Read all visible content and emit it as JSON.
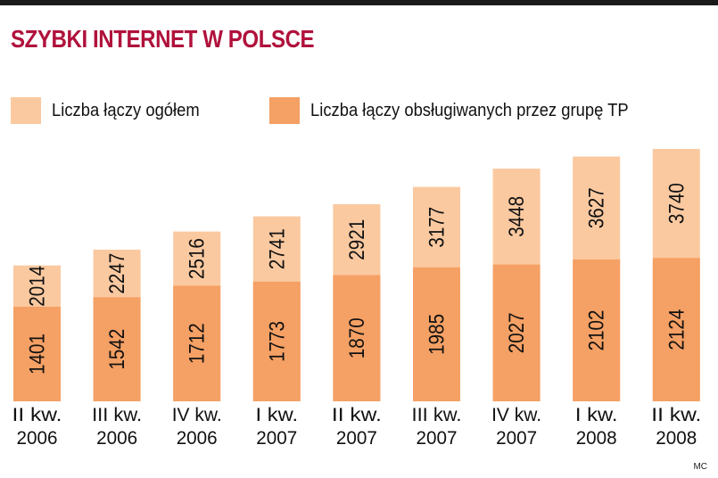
{
  "title": "SZYBKI INTERNET W POLSCE",
  "credit": "MC",
  "colors": {
    "title": "#b0123c",
    "total": "#fbc9a0",
    "tp": "#f5a064",
    "text": "#111111",
    "topbar": "#1a1a1a"
  },
  "chart_data": {
    "type": "bar",
    "stacked": "overlay",
    "categories": [
      [
        "II kw.",
        "2006"
      ],
      [
        "III kw.",
        "2006"
      ],
      [
        "IV kw.",
        "2006"
      ],
      [
        "I kw.",
        "2007"
      ],
      [
        "II kw.",
        "2007"
      ],
      [
        "III kw.",
        "2007"
      ],
      [
        "IV kw.",
        "2007"
      ],
      [
        "I kw.",
        "2008"
      ],
      [
        "II kw.",
        "2008"
      ]
    ],
    "series": [
      {
        "name": "Liczba łączy ogółem",
        "values": [
          2014,
          2247,
          2516,
          2741,
          2921,
          3177,
          3448,
          3627,
          3740
        ],
        "color": "#fbc9a0"
      },
      {
        "name": "Liczba łączy obsługiwanych przez grupę TP",
        "values": [
          1401,
          1542,
          1712,
          1773,
          1870,
          1985,
          2027,
          2102,
          2124
        ],
        "color": "#f5a064"
      }
    ],
    "ylim": [
      0,
      3740
    ],
    "legend": "top-left",
    "grid": false
  }
}
